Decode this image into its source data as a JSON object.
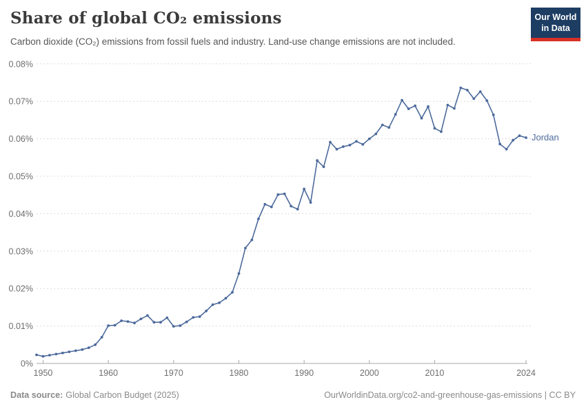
{
  "header": {
    "title": "Share of global CO₂ emissions",
    "subtitle": "Carbon dioxide (CO₂) emissions from fossil fuels and industry. Land-use change emissions are not included.",
    "logo": {
      "line1": "Our World",
      "line2": "in Data",
      "bg_color": "#1d3d63",
      "accent_color": "#d93025"
    }
  },
  "footer": {
    "source_label": "Data source:",
    "source_name": "Global Carbon Budget (2025)",
    "credit": "OurWorldinData.org/co2-and-greenhouse-gas-emissions | CC BY"
  },
  "chart_data": {
    "type": "line",
    "title": "Share of global CO₂ emissions",
    "entity": "Jordan",
    "unit": "%",
    "line_color": "#4c6a9c",
    "entity_label_color": "#4c6a9c",
    "grid": true,
    "legend_position": "right-of-line-end",
    "ylim": [
      0,
      0.08
    ],
    "y_ticks": [
      {
        "v": 0,
        "label": "0%"
      },
      {
        "v": 0.01,
        "label": "0.01%"
      },
      {
        "v": 0.02,
        "label": "0.02%"
      },
      {
        "v": 0.03,
        "label": "0.03%"
      },
      {
        "v": 0.04,
        "label": "0.04%"
      },
      {
        "v": 0.05,
        "label": "0.05%"
      },
      {
        "v": 0.06,
        "label": "0.06%"
      },
      {
        "v": 0.07,
        "label": "0.07%"
      },
      {
        "v": 0.08,
        "label": "0.08%"
      }
    ],
    "x_ticks": [
      1950,
      1960,
      1970,
      1980,
      1990,
      2000,
      2010,
      2024
    ],
    "x": [
      1949,
      1950,
      1951,
      1952,
      1953,
      1954,
      1955,
      1956,
      1957,
      1958,
      1959,
      1960,
      1961,
      1962,
      1963,
      1964,
      1965,
      1966,
      1967,
      1968,
      1969,
      1970,
      1971,
      1972,
      1973,
      1974,
      1975,
      1976,
      1977,
      1978,
      1979,
      1980,
      1981,
      1982,
      1983,
      1984,
      1985,
      1986,
      1987,
      1988,
      1989,
      1990,
      1991,
      1992,
      1993,
      1994,
      1995,
      1996,
      1997,
      1998,
      1999,
      2000,
      2001,
      2002,
      2003,
      2004,
      2005,
      2006,
      2007,
      2008,
      2009,
      2010,
      2011,
      2012,
      2013,
      2014,
      2015,
      2016,
      2017,
      2018,
      2019,
      2020,
      2021,
      2022,
      2023,
      2024
    ],
    "values": [
      0.0023,
      0.0019,
      0.0022,
      0.0025,
      0.0028,
      0.0031,
      0.0034,
      0.0037,
      0.0042,
      0.005,
      0.007,
      0.0101,
      0.0102,
      0.0114,
      0.0112,
      0.0108,
      0.0119,
      0.0128,
      0.011,
      0.011,
      0.0122,
      0.0099,
      0.0101,
      0.0111,
      0.0123,
      0.0125,
      0.014,
      0.0157,
      0.0162,
      0.0174,
      0.019,
      0.024,
      0.0308,
      0.033,
      0.0386,
      0.0425,
      0.0418,
      0.0451,
      0.0453,
      0.042,
      0.0412,
      0.0466,
      0.043,
      0.0542,
      0.0525,
      0.0591,
      0.0572,
      0.0579,
      0.0583,
      0.0593,
      0.0585,
      0.06,
      0.0613,
      0.0637,
      0.063,
      0.0665,
      0.0703,
      0.068,
      0.0688,
      0.0655,
      0.0686,
      0.0628,
      0.0619,
      0.069,
      0.0681,
      0.0736,
      0.073,
      0.0707,
      0.0726,
      0.0702,
      0.0664,
      0.0586,
      0.0572,
      0.0596,
      0.0608,
      0.0603
    ]
  }
}
